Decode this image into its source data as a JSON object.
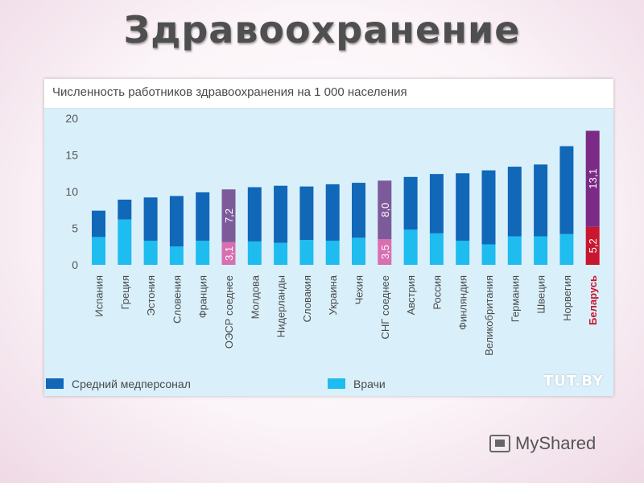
{
  "slide": {
    "title": "Здравоохранение",
    "logo_text": "MyShared"
  },
  "chart_data": {
    "type": "bar",
    "stacked": true,
    "title": "Численность работников здравоохранения на 1 000 населения",
    "watermark": "TUT.BY",
    "ylim": [
      0,
      20
    ],
    "yticks": [
      0,
      5,
      10,
      15,
      20
    ],
    "grid": false,
    "legend_position": "bottom",
    "categories": [
      "Испания",
      "Греция",
      "Эстония",
      "Словения",
      "Франция",
      "ОЭСР соеднее",
      "Молдова",
      "Нидерланды",
      "Словакия",
      "Украина",
      "Чехия",
      "СНГ соеднее",
      "Австрия",
      "Россия",
      "Финляндия",
      "Великобритания",
      "Германия",
      "Швеция",
      "Норвегия",
      "Беларусь"
    ],
    "series": [
      {
        "name": "Врачи",
        "color": "#1fbcef",
        "values": [
          3.8,
          6.2,
          3.3,
          2.5,
          3.3,
          3.1,
          3.2,
          3.0,
          3.4,
          3.3,
          3.7,
          3.5,
          4.8,
          4.3,
          3.3,
          2.8,
          3.9,
          3.9,
          4.2,
          5.2
        ]
      },
      {
        "name": "Средний медперсонал",
        "color": "#1167b8",
        "values": [
          3.6,
          2.7,
          5.9,
          6.9,
          6.6,
          7.2,
          7.4,
          7.8,
          7.3,
          7.7,
          7.5,
          8.0,
          7.2,
          8.1,
          9.2,
          10.1,
          9.5,
          9.8,
          12.0,
          13.1
        ]
      }
    ],
    "highlights": [
      {
        "category": "ОЭСР соеднее",
        "colors": [
          "#d76fb0",
          "#7d5a99"
        ],
        "labels": [
          "3,1",
          "7,2"
        ]
      },
      {
        "category": "СНГ соеднее",
        "colors": [
          "#d76fb0",
          "#7d5a99"
        ],
        "labels": [
          "3,5",
          "8,0"
        ]
      },
      {
        "category": "Беларусь",
        "colors": [
          "#c9172f",
          "#7b2b86"
        ],
        "labels": [
          "5,2",
          "13,1"
        ],
        "label_color": "#c9172f"
      }
    ],
    "legend": [
      {
        "label": "Средний медперсонал",
        "color": "#1167b8"
      },
      {
        "label": "Врачи",
        "color": "#1fbcef"
      }
    ]
  }
}
